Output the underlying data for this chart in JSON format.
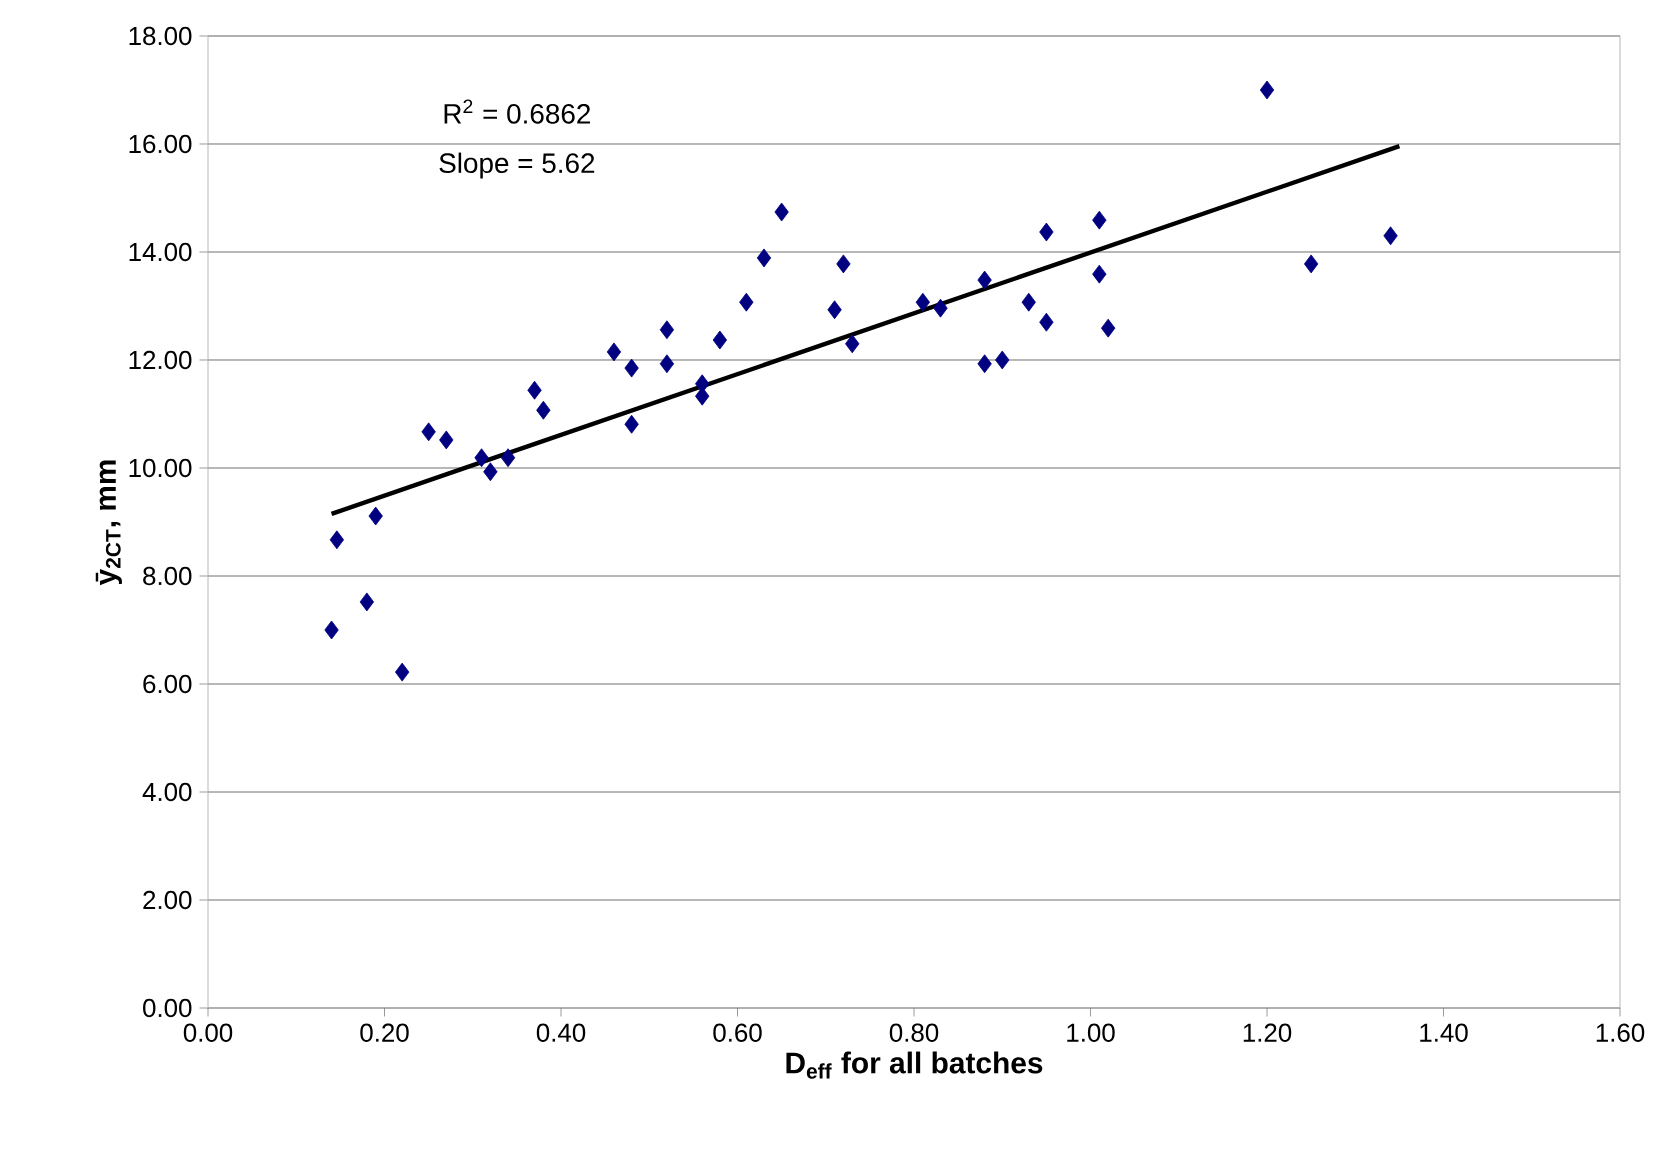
{
  "chart_data": {
    "type": "scatter",
    "xlabel": "D$_{eff}$ for all batches",
    "ylabel": "ȳ$_{2CT}$,  mm",
    "annotations": [
      "R$^{2}$ = 0.6862",
      "Slope = 5.62"
    ],
    "series": [
      {
        "color": "#000080",
        "marker": "diamond",
        "x": [
          0.14,
          0.146,
          0.18,
          0.19,
          0.22,
          0.25,
          0.27,
          0.31,
          0.32,
          0.34,
          0.37,
          0.38,
          0.46,
          0.48,
          0.48,
          0.52,
          0.52,
          0.56,
          0.56,
          0.58,
          0.61,
          0.63,
          0.65,
          0.71,
          0.72,
          0.73,
          0.81,
          0.83,
          0.88,
          0.88,
          0.9,
          0.93,
          0.95,
          0.95,
          1.01,
          1.01,
          1.02,
          1.2,
          1.25,
          1.34
        ],
        "values": [
          7.0,
          8.67,
          7.52,
          9.11,
          6.22,
          10.67,
          10.52,
          10.19,
          9.93,
          10.19,
          11.44,
          11.07,
          12.15,
          11.85,
          10.81,
          12.56,
          11.93,
          11.33,
          11.56,
          12.37,
          13.07,
          13.89,
          14.74,
          12.93,
          13.78,
          12.3,
          13.07,
          12.96,
          13.48,
          11.93,
          12.0,
          13.07,
          12.7,
          14.37,
          14.59,
          13.59,
          12.59,
          17.0,
          13.78,
          14.3
        ]
      },
      {
        "type": "line",
        "color": "#000000",
        "x": [
          0.14,
          1.35
        ],
        "values": [
          9.15,
          15.96
        ]
      }
    ],
    "xlim": [
      0,
      1.6
    ],
    "ylim": [
      0,
      18
    ],
    "xticks": [
      {
        "value": 0,
        "label": "0.00"
      },
      {
        "value": 0.2,
        "label": "0.20"
      },
      {
        "value": 0.4,
        "label": "0.40"
      },
      {
        "value": 0.6,
        "label": "0.60"
      },
      {
        "value": 0.8,
        "label": "0.80"
      },
      {
        "value": 1.0,
        "label": "1.00"
      },
      {
        "value": 1.2,
        "label": "1.20"
      },
      {
        "value": 1.4,
        "label": "1.40"
      },
      {
        "value": 1.6,
        "label": "1.60"
      }
    ],
    "yticks": [
      {
        "value": 0,
        "label": "0.00"
      },
      {
        "value": 2,
        "label": "2.00"
      },
      {
        "value": 4,
        "label": "4.00"
      },
      {
        "value": 6,
        "label": "6.00"
      },
      {
        "value": 8,
        "label": "8.00"
      },
      {
        "value": 10,
        "label": "10.00"
      },
      {
        "value": 12,
        "label": "12.00"
      },
      {
        "value": 14,
        "label": "14.00"
      },
      {
        "value": 16,
        "label": "16.00"
      },
      {
        "value": 18,
        "label": "18.00"
      }
    ],
    "grid": "y"
  }
}
